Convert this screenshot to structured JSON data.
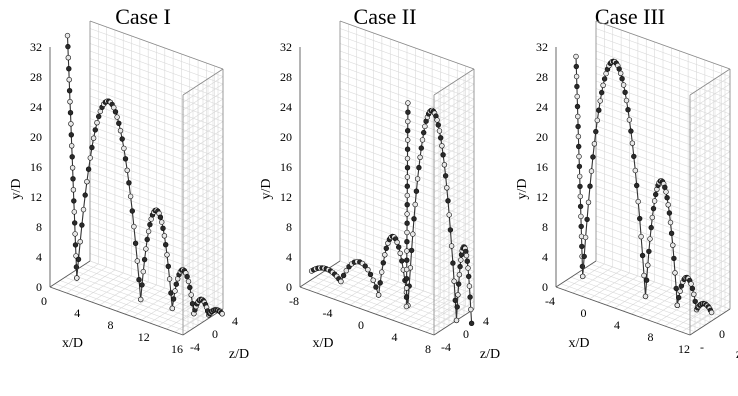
{
  "figure": {
    "panel_titles": [
      "Case I",
      "Case II",
      "Case III"
    ]
  },
  "colors": {
    "trajectory_line": "#333333",
    "marker_fill_light": "#e8e8e8",
    "marker_fill_dark": "#2a2a2a",
    "grid": "#d9d9d9"
  },
  "chart_data": [
    {
      "type": "scatter",
      "title": "Case I",
      "xlabel": "x/D",
      "ylabel": "y/D",
      "zlabel": "z/D",
      "xlim": [
        0,
        16
      ],
      "ylim": [
        0,
        32
      ],
      "zlim": [
        -4,
        4
      ],
      "x_ticks": [
        "0",
        "4",
        "8",
        "12",
        "16"
      ],
      "y_ticks": [
        "0",
        "4",
        "8",
        "12",
        "16",
        "20",
        "24",
        "28",
        "32"
      ],
      "z_ticks": [
        "-4",
        "0",
        "4"
      ],
      "grid": true,
      "arcs": [
        {
          "x0": 0.0,
          "x1": 1.0,
          "z0": 0.5,
          "z1": 0.3,
          "h": 32.0,
          "kind": "vertical"
        },
        {
          "x0": 1.0,
          "x1": 8.5,
          "z0": 0.3,
          "z1": 0.0,
          "h": 25.0
        },
        {
          "x0": 8.5,
          "x1": 12.0,
          "z0": 0.0,
          "z1": -0.5,
          "h": 12.5
        },
        {
          "x0": 12.0,
          "x1": 14.3,
          "z0": -0.5,
          "z1": -1.0,
          "h": 5.5
        },
        {
          "x0": 14.3,
          "x1": 15.6,
          "z0": -1.0,
          "z1": -1.8,
          "h": 2.0
        },
        {
          "x0": 15.6,
          "x1": 16.5,
          "z0": -1.8,
          "z1": -3.0,
          "h": 0.6
        }
      ]
    },
    {
      "type": "scatter",
      "title": "Case II",
      "xlabel": "x/D",
      "ylabel": "y/D",
      "zlabel": "z/D",
      "xlim": [
        -8,
        8
      ],
      "ylim": [
        0,
        32
      ],
      "zlim": [
        -4,
        4
      ],
      "x_ticks": [
        "-8",
        "-4",
        "0",
        "4",
        "8"
      ],
      "y_ticks": [
        "0",
        "4",
        "8",
        "12",
        "16",
        "20",
        "24",
        "28",
        "32"
      ],
      "z_ticks": [
        "-4",
        "0",
        "4"
      ],
      "grid": true,
      "arcs": [
        {
          "x0": -9.0,
          "x1": -5.5,
          "z0": 0.0,
          "z1": 0.0,
          "h": 1.0
        },
        {
          "x0": -5.5,
          "x1": -1.0,
          "z0": 0.0,
          "z1": 0.0,
          "h": 3.5
        },
        {
          "x0": -1.0,
          "x1": 2.5,
          "z0": 0.0,
          "z1": 0.0,
          "h": 8.5
        },
        {
          "x0": 2.5,
          "x1": 8.0,
          "z0": 0.0,
          "z1": -0.5,
          "h": 27.0
        },
        {
          "x0": 8.0,
          "x1": 9.5,
          "z0": -0.5,
          "z1": -1.0,
          "h": 10.0
        },
        {
          "x0": 2.5,
          "x1": 2.5,
          "z0": 0.0,
          "z1": 0.3,
          "h": 27.0,
          "kind": "vertical"
        }
      ]
    },
    {
      "type": "scatter",
      "title": "Case III",
      "xlabel": "x/D",
      "ylabel": "y/D",
      "zlabel": "z/D",
      "xlim": [
        -4,
        12
      ],
      "ylim": [
        0,
        32
      ],
      "zlim": [
        -4,
        4
      ],
      "x_ticks": [
        "-4",
        "0",
        "4",
        "8",
        "12"
      ],
      "y_ticks": [
        "0",
        "4",
        "8",
        "12",
        "16",
        "20",
        "24",
        "28",
        "32"
      ],
      "z_ticks": [
        "-",
        "0",
        "4"
      ],
      "grid": true,
      "arcs": [
        {
          "x0": -4.0,
          "x1": -3.2,
          "z0": 0.0,
          "z1": 0.0,
          "h": 29.0,
          "kind": "vertical"
        },
        {
          "x0": -3.2,
          "x1": 4.0,
          "z0": 0.0,
          "z1": -0.5,
          "h": 30.0
        },
        {
          "x0": 4.0,
          "x1": 7.5,
          "z0": -0.5,
          "z1": -1.0,
          "h": 16.0
        },
        {
          "x0": 7.5,
          "x1": 9.5,
          "z0": -1.0,
          "z1": -1.5,
          "h": 4.0
        },
        {
          "x0": 9.5,
          "x1": 11.0,
          "z0": -1.5,
          "z1": -2.0,
          "h": 1.0
        }
      ]
    }
  ]
}
